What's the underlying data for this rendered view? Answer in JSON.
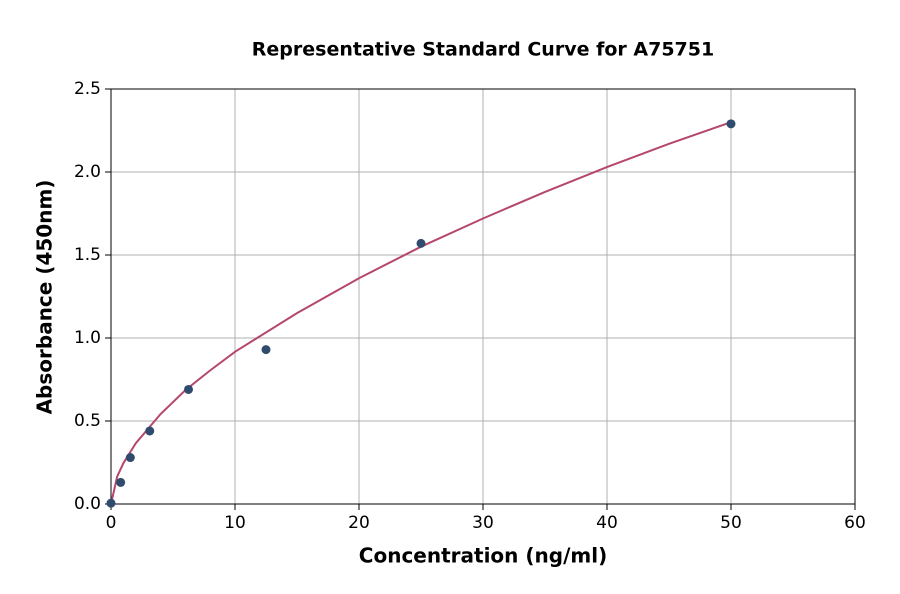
{
  "chart_data": {
    "type": "scatter",
    "title": "Representative Standard Curve for A75751",
    "x_label": "Concentration (ng/ml)",
    "y_label": "Absorbance (450nm)",
    "xlim": [
      0,
      60
    ],
    "ylim": [
      0,
      2.5
    ],
    "xticks": [
      0,
      10,
      20,
      30,
      40,
      50,
      60
    ],
    "yticks": [
      {
        "value": 0,
        "label": "0.0"
      },
      0.5,
      {
        "value": 1,
        "label": "1.0"
      },
      1.5,
      {
        "value": 2,
        "label": "2.0"
      },
      2.5
    ],
    "grid": true,
    "series": [
      {
        "type": "scatter",
        "color": "#2f4b6e",
        "x": [
          0,
          0.78,
          1.56,
          3.125,
          6.25,
          12.5,
          25,
          50
        ],
        "values": [
          0.005,
          0.13,
          0.28,
          0.44,
          0.69,
          0.93,
          1.57,
          2.29
        ]
      },
      {
        "type": "line",
        "color": "#b5476a",
        "x": [
          0,
          0.5,
          1,
          2,
          4,
          6,
          8,
          10,
          15,
          20,
          25,
          30,
          35,
          40,
          45,
          50
        ],
        "values": [
          0,
          0.166,
          0.246,
          0.366,
          0.542,
          0.686,
          0.805,
          0.917,
          1.15,
          1.36,
          1.55,
          1.72,
          1.88,
          2.03,
          2.17,
          2.3
        ]
      }
    ]
  }
}
